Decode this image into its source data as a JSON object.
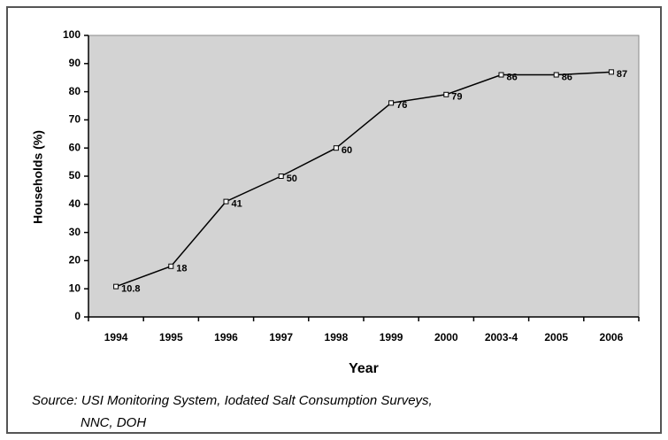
{
  "chart_data": {
    "type": "line",
    "categories": [
      "1994",
      "1995",
      "1996",
      "1997",
      "1998",
      "1999",
      "2000",
      "2003-4",
      "2005",
      "2006"
    ],
    "values": [
      10.8,
      18,
      41,
      50,
      60,
      76,
      79,
      86,
      86,
      87
    ],
    "color": "#000000",
    "plot_background": "#d3d3d3",
    "xlabel": "Year",
    "ylabel": "Households (%)",
    "ylim": [
      0,
      100
    ],
    "yticks": [
      0,
      10,
      20,
      30,
      40,
      50,
      60,
      70,
      80,
      90,
      100
    ],
    "source": [
      "Source: USI Monitoring System, Iodated Salt  Consumption Surveys,",
      "NNC, DOH"
    ]
  }
}
